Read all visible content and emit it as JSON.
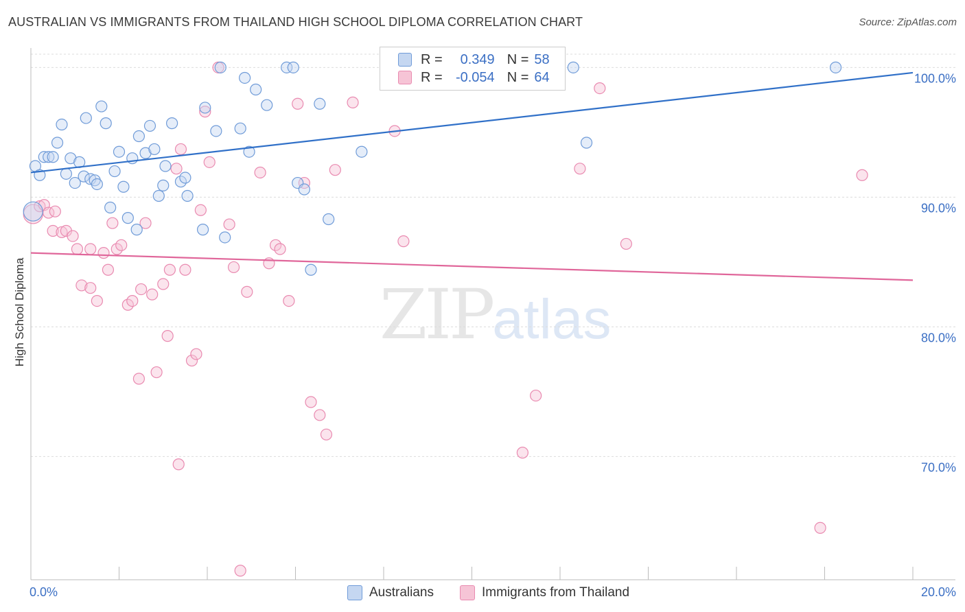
{
  "chart_data": {
    "type": "scatter",
    "title": "AUSTRALIAN VS IMMIGRANTS FROM THAILAND HIGH SCHOOL DIPLOMA CORRELATION CHART",
    "source": "Source: ZipAtlas.com",
    "ylabel": "High School Diploma",
    "xlabel": "",
    "xlim": [
      0,
      20
    ],
    "ylim": [
      60.5,
      101.5
    ],
    "x_tick_labels": [
      "0.0%",
      "20.0%"
    ],
    "y_ticks": [
      {
        "value": 100,
        "label": "100.0%"
      },
      {
        "value": 90,
        "label": "90.0%"
      },
      {
        "value": 80,
        "label": "80.0%"
      },
      {
        "value": 70,
        "label": "70.0%"
      }
    ],
    "watermark": {
      "zip": "ZIP",
      "atlas": "atlas"
    },
    "legend": {
      "r_label": "R =",
      "n_label": "N =",
      "entries": [
        {
          "r": "0.349",
          "n": "58"
        },
        {
          "r": "-0.054",
          "n": "64"
        }
      ]
    },
    "series": [
      {
        "name": "Australians",
        "color": "#6f9bd8",
        "fill": "#c5d7f1",
        "trend": {
          "x0": 0,
          "y0": 91.9,
          "x1": 20,
          "y1": 99.6
        },
        "points": [
          [
            0.1,
            92.4
          ],
          [
            0.2,
            91.7
          ],
          [
            0.3,
            93.1
          ],
          [
            0.4,
            93.1
          ],
          [
            0.5,
            93.1
          ],
          [
            0.6,
            94.2
          ],
          [
            0.7,
            95.6
          ],
          [
            0.8,
            91.8
          ],
          [
            0.9,
            93.0
          ],
          [
            1.0,
            91.1
          ],
          [
            1.1,
            92.7
          ],
          [
            1.2,
            91.6
          ],
          [
            1.25,
            96.1
          ],
          [
            1.35,
            91.4
          ],
          [
            1.45,
            91.3
          ],
          [
            1.5,
            91.0
          ],
          [
            1.6,
            97.0
          ],
          [
            1.7,
            95.7
          ],
          [
            1.8,
            89.2
          ],
          [
            1.9,
            92.0
          ],
          [
            2.0,
            93.5
          ],
          [
            2.1,
            90.8
          ],
          [
            2.2,
            88.4
          ],
          [
            2.3,
            93.0
          ],
          [
            2.4,
            87.5
          ],
          [
            2.45,
            94.7
          ],
          [
            2.6,
            93.4
          ],
          [
            2.7,
            95.5
          ],
          [
            2.8,
            93.7
          ],
          [
            2.9,
            90.1
          ],
          [
            3.0,
            90.9
          ],
          [
            3.05,
            92.4
          ],
          [
            3.2,
            95.7
          ],
          [
            3.4,
            91.2
          ],
          [
            3.5,
            91.5
          ],
          [
            3.55,
            90.1
          ],
          [
            3.9,
            87.5
          ],
          [
            3.95,
            96.9
          ],
          [
            4.2,
            95.1
          ],
          [
            4.3,
            100.0
          ],
          [
            4.4,
            86.9
          ],
          [
            4.75,
            95.3
          ],
          [
            4.85,
            99.2
          ],
          [
            4.95,
            93.5
          ],
          [
            5.1,
            98.3
          ],
          [
            5.35,
            97.1
          ],
          [
            5.8,
            100.0
          ],
          [
            5.95,
            100.0
          ],
          [
            6.05,
            91.1
          ],
          [
            6.2,
            90.6
          ],
          [
            6.35,
            84.4
          ],
          [
            6.55,
            97.2
          ],
          [
            6.75,
            88.3
          ],
          [
            7.5,
            93.5
          ],
          [
            12.3,
            100.0
          ],
          [
            12.6,
            94.2
          ],
          [
            18.25,
            100.0
          ],
          [
            0.05,
            88.9
          ]
        ]
      },
      {
        "name": "Immigrants from Thailand",
        "color": "#e98ab0",
        "fill": "#f6c4d6",
        "trend": {
          "x0": 0,
          "y0": 85.7,
          "x1": 20,
          "y1": 83.6
        },
        "points": [
          [
            0.05,
            88.7
          ],
          [
            0.2,
            89.3
          ],
          [
            0.3,
            89.4
          ],
          [
            0.4,
            88.8
          ],
          [
            0.55,
            88.9
          ],
          [
            0.5,
            87.4
          ],
          [
            0.7,
            87.3
          ],
          [
            0.8,
            87.4
          ],
          [
            0.95,
            87.0
          ],
          [
            1.05,
            86.0
          ],
          [
            1.15,
            83.2
          ],
          [
            1.35,
            83.0
          ],
          [
            1.5,
            82.0
          ],
          [
            1.65,
            85.7
          ],
          [
            1.75,
            84.4
          ],
          [
            1.85,
            88.0
          ],
          [
            1.95,
            86.0
          ],
          [
            2.05,
            86.3
          ],
          [
            2.2,
            81.7
          ],
          [
            2.3,
            82.0
          ],
          [
            2.5,
            82.9
          ],
          [
            2.6,
            88.0
          ],
          [
            2.75,
            82.5
          ],
          [
            2.85,
            76.5
          ],
          [
            3.0,
            83.3
          ],
          [
            3.1,
            79.3
          ],
          [
            3.15,
            84.4
          ],
          [
            3.3,
            92.2
          ],
          [
            3.4,
            93.7
          ],
          [
            3.5,
            84.4
          ],
          [
            3.65,
            77.4
          ],
          [
            3.75,
            77.9
          ],
          [
            3.85,
            89.0
          ],
          [
            3.95,
            96.6
          ],
          [
            4.05,
            92.7
          ],
          [
            4.25,
            100.0
          ],
          [
            4.5,
            87.9
          ],
          [
            4.6,
            84.6
          ],
          [
            4.9,
            82.7
          ],
          [
            5.2,
            91.9
          ],
          [
            5.4,
            84.9
          ],
          [
            5.55,
            86.3
          ],
          [
            5.65,
            86.0
          ],
          [
            5.85,
            82.0
          ],
          [
            6.05,
            97.2
          ],
          [
            6.2,
            91.1
          ],
          [
            6.35,
            74.2
          ],
          [
            6.55,
            73.2
          ],
          [
            6.7,
            71.7
          ],
          [
            6.9,
            92.1
          ],
          [
            7.3,
            97.3
          ],
          [
            8.25,
            95.1
          ],
          [
            8.45,
            86.6
          ],
          [
            11.15,
            70.3
          ],
          [
            11.45,
            74.7
          ],
          [
            12.45,
            92.2
          ],
          [
            12.9,
            98.4
          ],
          [
            13.5,
            86.4
          ],
          [
            18.85,
            91.7
          ],
          [
            17.9,
            64.5
          ],
          [
            4.75,
            61.2
          ],
          [
            3.35,
            69.4
          ],
          [
            2.45,
            76.0
          ],
          [
            1.35,
            86.0
          ]
        ]
      }
    ]
  }
}
